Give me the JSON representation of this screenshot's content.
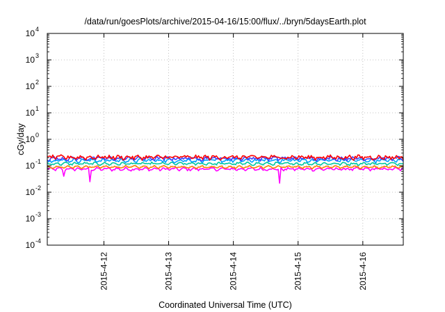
{
  "chart_data": {
    "type": "line",
    "title": "/data/run/goesPlots/archive/2015-04-16/15:00/flux/../bryn/5daysEarth.plot",
    "xlabel": "Coordinated Universal Time (UTC)",
    "ylabel": "cGy/day",
    "yscale": "log",
    "ylim": [
      0.0001,
      10000
    ],
    "y_ticks": [
      {
        "value": 0.0001,
        "base": "10",
        "exp": "-4"
      },
      {
        "value": 0.001,
        "base": "10",
        "exp": "-3"
      },
      {
        "value": 0.01,
        "base": "10",
        "exp": "-2"
      },
      {
        "value": 0.1,
        "base": "10",
        "exp": "-1"
      },
      {
        "value": 1,
        "base": "10",
        "exp": "0"
      },
      {
        "value": 10,
        "base": "10",
        "exp": "1"
      },
      {
        "value": 100,
        "base": "10",
        "exp": "2"
      },
      {
        "value": 1000,
        "base": "10",
        "exp": "3"
      },
      {
        "value": 10000,
        "base": "10",
        "exp": "4"
      }
    ],
    "xlim": [
      "2015-04-11 03:00",
      "2015-04-16 15:00"
    ],
    "x_ticks": [
      {
        "value": "2015-04-12 00:00",
        "label": "2015-4-12"
      },
      {
        "value": "2015-04-13 00:00",
        "label": "2015-4-13"
      },
      {
        "value": "2015-04-14 00:00",
        "label": "2015-4-14"
      },
      {
        "value": "2015-04-15 00:00",
        "label": "2015-4-15"
      },
      {
        "value": "2015-04-16 00:00",
        "label": "2015-4-16"
      }
    ],
    "grid": true,
    "series": [
      {
        "color": "#ff00ff",
        "level": 0.075,
        "noise": 0.1,
        "dips": [
          {
            "at": "2015-04-11 19:00",
            "value": 0.025
          },
          {
            "at": "2015-04-14 17:00",
            "value": 0.022
          },
          {
            "at": "2015-04-11 09:00",
            "value": 0.04
          }
        ]
      },
      {
        "color": "#ff7f00",
        "level": 0.09,
        "noise": 0.06,
        "dips": []
      },
      {
        "color": "#00c8a0",
        "level": 0.12,
        "noise": 0.08,
        "dips": []
      },
      {
        "color": "#00a0ff",
        "level": 0.16,
        "noise": 0.12,
        "dips": []
      },
      {
        "color": "#4040ff",
        "level": 0.19,
        "noise": 0.14,
        "dips": []
      },
      {
        "color": "#ff0000",
        "level": 0.21,
        "noise": 0.16,
        "dips": []
      }
    ]
  }
}
